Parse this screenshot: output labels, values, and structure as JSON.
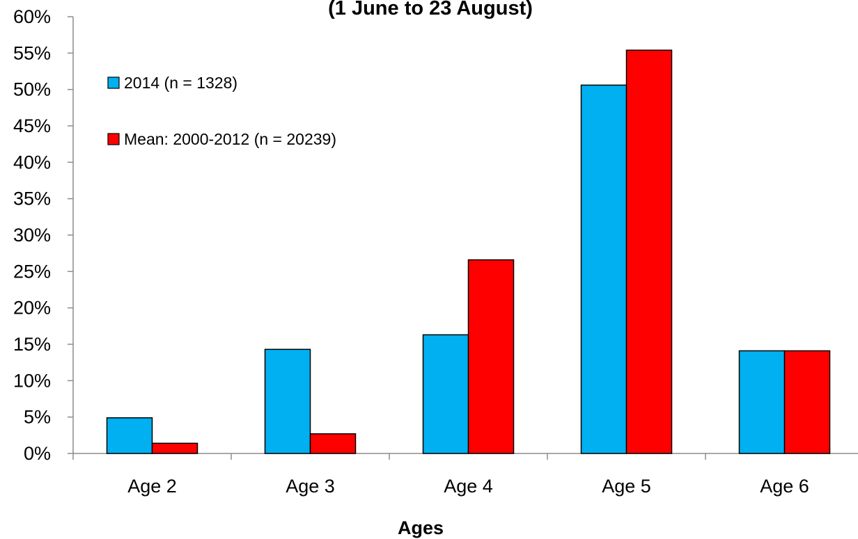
{
  "chart_data": {
    "type": "bar",
    "title": "(1 June to 23 August)",
    "xlabel": "Ages",
    "ylabel": "",
    "categories": [
      "Age 2",
      "Age 3",
      "Age 4",
      "Age 5",
      "Age 6"
    ],
    "series": [
      {
        "name": "2014 (n = 1328)",
        "color": "#00b0f0",
        "values": [
          4.9,
          14.3,
          16.3,
          50.6,
          14.1
        ]
      },
      {
        "name": "Mean: 2000-2012 (n = 20239)",
        "color": "#ff0000",
        "values": [
          1.4,
          2.7,
          26.6,
          55.4,
          14.1
        ]
      }
    ],
    "ylim": [
      0,
      60
    ],
    "yticks": [
      "0%",
      "5%",
      "10%",
      "15%",
      "20%",
      "25%",
      "30%",
      "35%",
      "40%",
      "45%",
      "50%",
      "55%",
      "60%"
    ],
    "ytick_values": [
      0,
      5,
      10,
      15,
      20,
      25,
      30,
      35,
      40,
      45,
      50,
      55,
      60
    ],
    "grid": false,
    "legend_position": "top-left"
  }
}
